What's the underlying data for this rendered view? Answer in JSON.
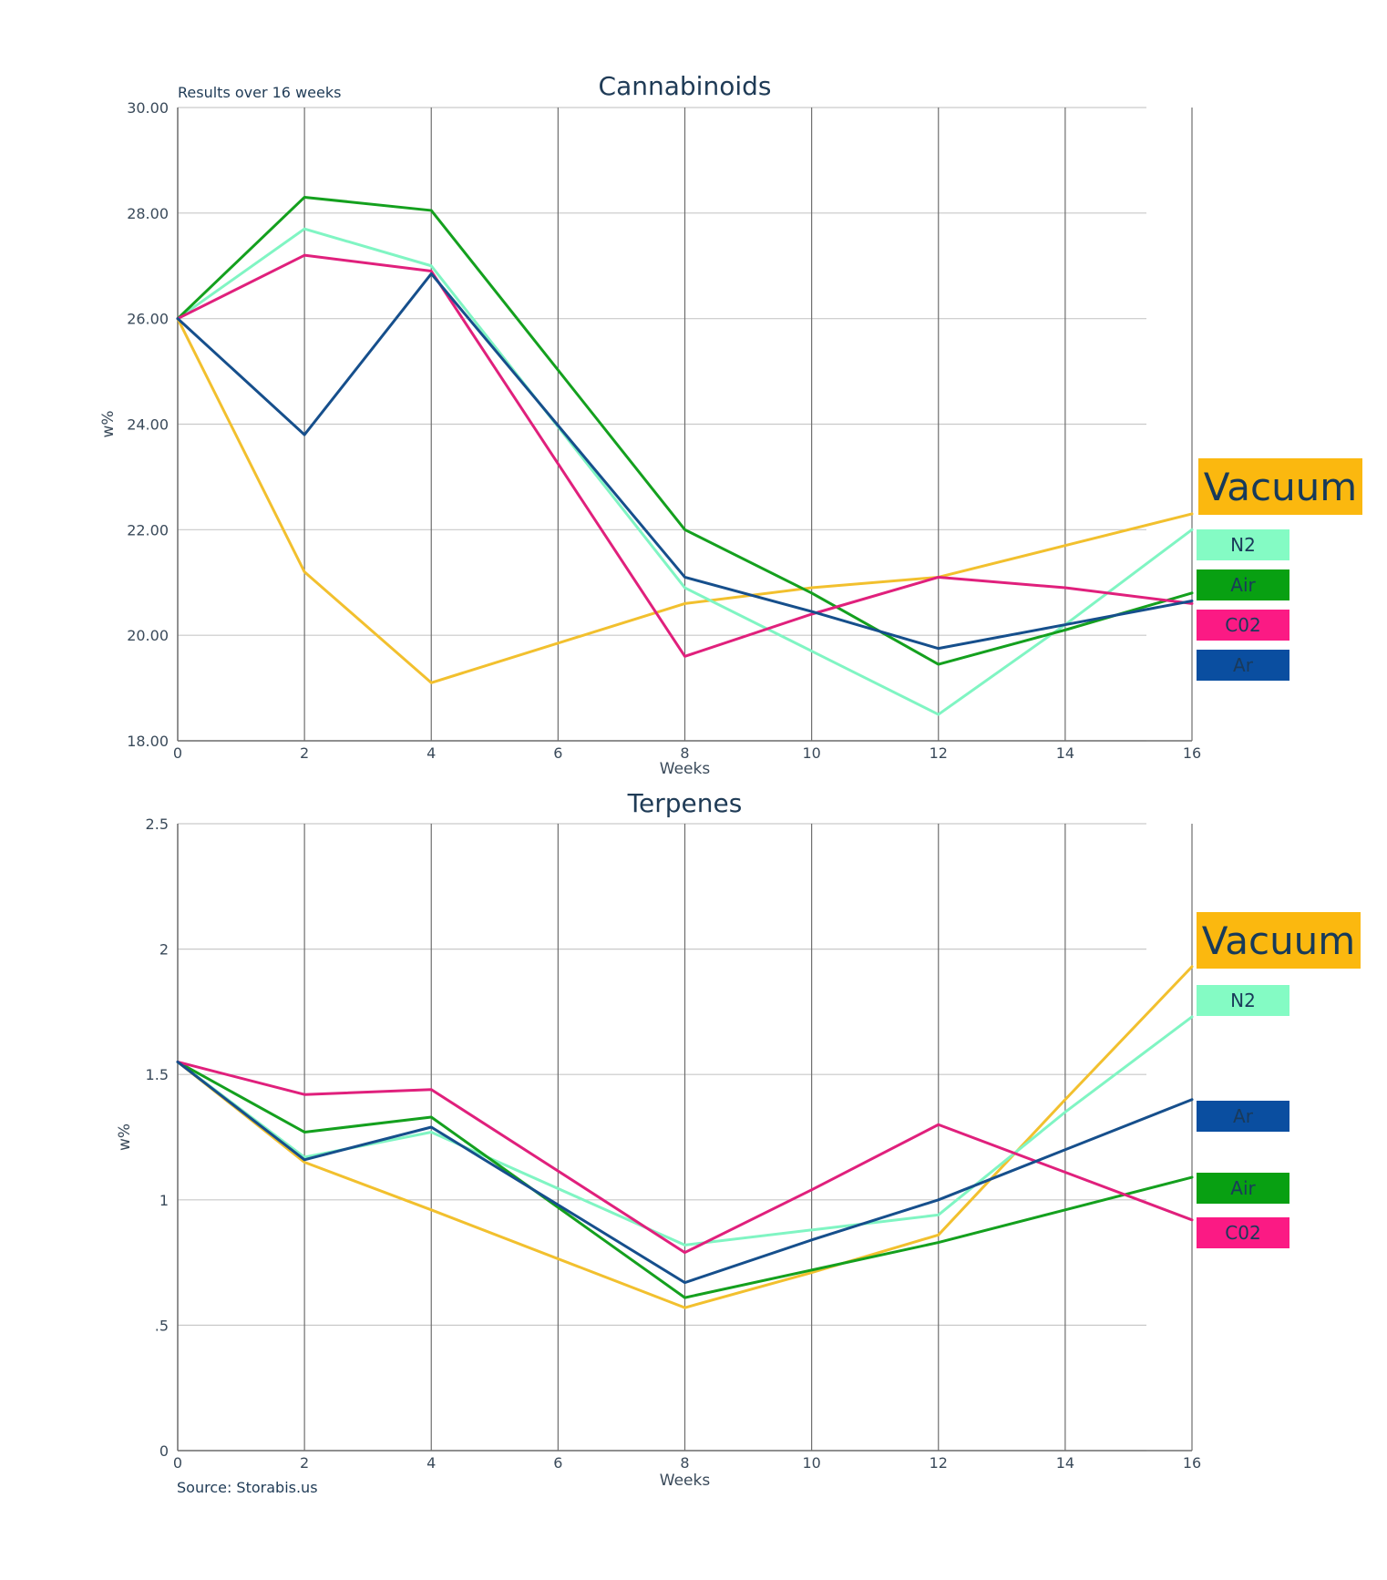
{
  "source": "Source: Storabis.us",
  "colors": {
    "Vacuum": "#f2c02e",
    "N2": "#80f5c3",
    "Air": "#14a01e",
    "CO2": "#e0207c",
    "Ar": "#164f8c"
  },
  "legend_box_colors": {
    "Vacuum": "#fbb80f",
    "N2": "#84fbc4",
    "Air": "#08a012",
    "CO2": "#fb1a84",
    "Ar": "#0a4ea0"
  },
  "chart_data": [
    {
      "type": "line",
      "title": "Cannabinoids",
      "subtitle": "Results over 16 weeks",
      "xlabel": "Weeks",
      "ylabel": "w%",
      "x": [
        0,
        2,
        4,
        8,
        10,
        12,
        14,
        16
      ],
      "xticks": [
        "0",
        "2",
        "4",
        "6",
        "8",
        "10",
        "12",
        "14",
        "16"
      ],
      "xlim": [
        0,
        16
      ],
      "yticks": [
        "18.00",
        "20.00",
        "22.00",
        "24.00",
        "26.00",
        "28.00",
        "30.00"
      ],
      "ylim": [
        18,
        30
      ],
      "grid": true,
      "series": [
        {
          "name": "Vacuum",
          "values": [
            26.0,
            21.2,
            19.1,
            20.6,
            20.9,
            21.1,
            21.7,
            22.3
          ]
        },
        {
          "name": "N2",
          "values": [
            26.0,
            27.7,
            27.0,
            20.9,
            19.7,
            18.5,
            20.2,
            22.0
          ]
        },
        {
          "name": "Air",
          "values": [
            26.0,
            28.3,
            28.05,
            22.0,
            20.8,
            19.45,
            20.1,
            20.8
          ]
        },
        {
          "name": "CO2",
          "values": [
            26.0,
            27.2,
            26.9,
            19.6,
            20.4,
            21.1,
            20.9,
            20.6
          ]
        },
        {
          "name": "Ar",
          "values": [
            26.0,
            23.8,
            26.85,
            21.1,
            20.45,
            19.75,
            20.2,
            20.65
          ]
        }
      ],
      "legend": [
        {
          "key": "Vacuum",
          "label": "Vacuum"
        },
        {
          "key": "N2",
          "label": "N2"
        },
        {
          "key": "Air",
          "label": "Air"
        },
        {
          "key": "CO2",
          "label": "C02"
        },
        {
          "key": "Ar",
          "label": "Ar"
        }
      ]
    },
    {
      "type": "line",
      "title": "Terpenes",
      "xlabel": "Weeks",
      "ylabel": "w%",
      "x": [
        0,
        2,
        4,
        8,
        10,
        12,
        14,
        16
      ],
      "xticks": [
        "0",
        "2",
        "4",
        "6",
        "8",
        "10",
        "12",
        "14",
        "16"
      ],
      "xlim": [
        0,
        16
      ],
      "yticks": [
        "0",
        ".5",
        "1",
        "1.5",
        "2",
        "2.5"
      ],
      "ylim": [
        0,
        2.5
      ],
      "grid": true,
      "series": [
        {
          "name": "Vacuum",
          "values": [
            1.55,
            1.15,
            0.96,
            0.57,
            0.71,
            0.86,
            1.4,
            1.93
          ]
        },
        {
          "name": "N2",
          "values": [
            1.55,
            1.17,
            1.27,
            0.82,
            0.88,
            0.94,
            1.35,
            1.73
          ]
        },
        {
          "name": "Air",
          "values": [
            1.55,
            1.27,
            1.33,
            0.61,
            0.72,
            0.83,
            0.96,
            1.09
          ]
        },
        {
          "name": "CO2",
          "values": [
            1.55,
            1.42,
            1.44,
            0.79,
            1.04,
            1.3,
            1.11,
            0.92
          ]
        },
        {
          "name": "Ar",
          "values": [
            1.55,
            1.16,
            1.29,
            0.67,
            0.84,
            1.0,
            1.2,
            1.4
          ]
        }
      ],
      "legend": [
        {
          "key": "Vacuum",
          "label": "Vacuum"
        },
        {
          "key": "N2",
          "label": "N2"
        },
        {
          "key": "Ar",
          "label": "Ar"
        },
        {
          "key": "Air",
          "label": "Air"
        },
        {
          "key": "CO2",
          "label": "C02"
        }
      ]
    }
  ]
}
